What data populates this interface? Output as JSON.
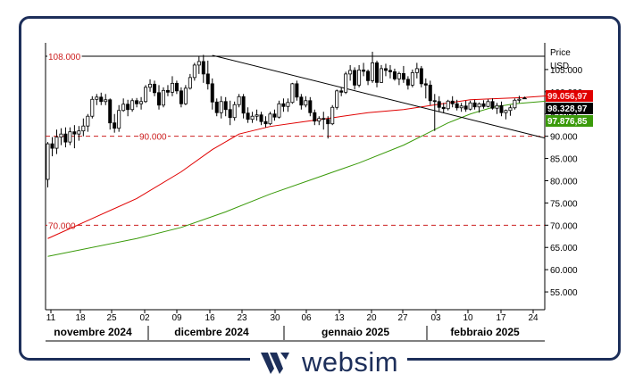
{
  "brand": {
    "name": "websim",
    "logo_icon": "websim-logo-icon",
    "color": "#1d2f5a"
  },
  "chart_data": {
    "type": "candlestick",
    "axis_title_lines": [
      "Price",
      "USD"
    ],
    "ylim": [
      51000,
      111000
    ],
    "y_ticks": [
      55000,
      60000,
      65000,
      70000,
      75000,
      80000,
      85000,
      90000,
      95000,
      100000,
      105000
    ],
    "y_tick_labels": [
      "55.000",
      "60.000",
      "65.000",
      "70.000",
      "75.000",
      "80.000",
      "85.000",
      "90.000",
      "95.000",
      "100.000",
      "105.000"
    ],
    "x_ticks": [
      "11",
      "18",
      "25",
      "02",
      "09",
      "16",
      "23",
      "30",
      "06",
      "13",
      "20",
      "27",
      "03",
      "10",
      "17",
      "24"
    ],
    "months": [
      "novembre 2024",
      "dicembre 2024",
      "gennaio 2025",
      "febbraio 2025"
    ],
    "price_labels": [
      {
        "text": "99.056,97",
        "value": 99056.97,
        "color": "#e00000"
      },
      {
        "text": "98.328,97",
        "value": 98328.97,
        "color": "#000000"
      },
      {
        "text": "97.876,85",
        "value": 97876.85,
        "color": "#3a9a0a"
      }
    ],
    "hlines": [
      {
        "label": "108.000",
        "value": 108000,
        "style": "solid",
        "color": "#000000"
      },
      {
        "label": "90.000",
        "value": 90000,
        "style": "dashed",
        "color": "#cc2020"
      },
      {
        "label": "70.000",
        "value": 70000,
        "style": "dashed",
        "color": "#cc2020"
      }
    ],
    "trendline": {
      "from_day": 37,
      "from_value": 108200,
      "to_day": 117,
      "to_value": 88300,
      "color": "#000000"
    },
    "ma_short": {
      "color": "#e00000",
      "points": [
        [
          0,
          67000
        ],
        [
          10,
          71500
        ],
        [
          20,
          76000
        ],
        [
          30,
          82000
        ],
        [
          37,
          87000
        ],
        [
          43,
          90500
        ],
        [
          50,
          92200
        ],
        [
          57,
          93200
        ],
        [
          65,
          94300
        ],
        [
          72,
          95300
        ],
        [
          80,
          96000
        ],
        [
          88,
          97200
        ],
        [
          95,
          98200
        ],
        [
          102,
          98500
        ],
        [
          107,
          98700
        ],
        [
          112,
          99056
        ]
      ]
    },
    "ma_long": {
      "color": "#3a9a0a",
      "points": [
        [
          0,
          63000
        ],
        [
          20,
          67000
        ],
        [
          30,
          69500
        ],
        [
          40,
          73000
        ],
        [
          50,
          77000
        ],
        [
          60,
          80500
        ],
        [
          70,
          84000
        ],
        [
          80,
          88000
        ],
        [
          85,
          90500
        ],
        [
          90,
          93000
        ],
        [
          95,
          95000
        ],
        [
          100,
          96500
        ],
        [
          105,
          97300
        ],
        [
          112,
          97877
        ]
      ]
    },
    "candles": [
      [
        0,
        80300,
        88700,
        78500,
        88300
      ],
      [
        1,
        88300,
        89800,
        85500,
        87300
      ],
      [
        2,
        87300,
        91500,
        86000,
        89800
      ],
      [
        3,
        89800,
        91800,
        88000,
        90500
      ],
      [
        4,
        90500,
        92000,
        87500,
        88700
      ],
      [
        5,
        88700,
        92000,
        88000,
        91000
      ],
      [
        6,
        91000,
        92500,
        87300,
        90500
      ],
      [
        7,
        90500,
        92300,
        89000,
        91200
      ],
      [
        8,
        91200,
        94000,
        90000,
        92300
      ],
      [
        9,
        92300,
        95000,
        91000,
        94500
      ],
      [
        10,
        94500,
        99000,
        94000,
        98300
      ],
      [
        11,
        98300,
        99500,
        97000,
        98800
      ],
      [
        12,
        98800,
        99800,
        97000,
        97800
      ],
      [
        13,
        97800,
        99500,
        97000,
        98200
      ],
      [
        14,
        98200,
        98500,
        91500,
        93000
      ],
      [
        15,
        93000,
        95000,
        90800,
        91800
      ],
      [
        16,
        91800,
        97000,
        91000,
        95800
      ],
      [
        17,
        95800,
        98500,
        95500,
        97200
      ],
      [
        18,
        97200,
        98200,
        94500,
        96000
      ],
      [
        19,
        96000,
        98500,
        95500,
        98000
      ],
      [
        20,
        98000,
        98600,
        96500,
        97300
      ],
      [
        21,
        97300,
        98800,
        96000,
        97800
      ],
      [
        22,
        97800,
        101500,
        97500,
        101000
      ],
      [
        23,
        101000,
        102800,
        100000,
        101700
      ],
      [
        24,
        101700,
        102500,
        99000,
        99800
      ],
      [
        25,
        99800,
        101500,
        96000,
        97000
      ],
      [
        26,
        97000,
        101000,
        96500,
        100300
      ],
      [
        27,
        100300,
        101500,
        99000,
        99900
      ],
      [
        28,
        99900,
        103500,
        99000,
        101900
      ],
      [
        29,
        101900,
        102500,
        99500,
        100200
      ],
      [
        30,
        100200,
        101000,
        96500,
        97300
      ],
      [
        31,
        97300,
        101500,
        97000,
        100800
      ],
      [
        32,
        100800,
        104000,
        100500,
        103200
      ],
      [
        33,
        103200,
        106500,
        102500,
        106000
      ],
      [
        34,
        106000,
        108000,
        104000,
        106800
      ],
      [
        35,
        106800,
        108300,
        102000,
        104000
      ],
      [
        36,
        104000,
        107000,
        100500,
        101800
      ],
      [
        37,
        101800,
        103000,
        96000,
        97700
      ],
      [
        38,
        97700,
        98500,
        94500,
        95300
      ],
      [
        39,
        95300,
        99000,
        94000,
        97800
      ],
      [
        40,
        97800,
        98800,
        94500,
        96000
      ],
      [
        41,
        96000,
        98000,
        92500,
        94200
      ],
      [
        42,
        94200,
        97800,
        93500,
        97100
      ],
      [
        43,
        97100,
        99500,
        96500,
        98900
      ],
      [
        44,
        98900,
        99500,
        94000,
        95200
      ],
      [
        45,
        95200,
        96500,
        93000,
        93800
      ],
      [
        46,
        93800,
        95500,
        93000,
        94500
      ],
      [
        47,
        94500,
        96000,
        93500,
        94800
      ],
      [
        48,
        94800,
        95500,
        92500,
        93300
      ],
      [
        49,
        93300,
        94500,
        92000,
        92800
      ],
      [
        50,
        92800,
        95500,
        92500,
        95000
      ],
      [
        51,
        95000,
        96000,
        93500,
        94300
      ],
      [
        52,
        94300,
        98000,
        94000,
        97300
      ],
      [
        53,
        97300,
        98500,
        95500,
        96700
      ],
      [
        54,
        96700,
        98500,
        95500,
        97600
      ],
      [
        55,
        97600,
        102000,
        97300,
        101800
      ],
      [
        56,
        101800,
        102500,
        98000,
        98800
      ],
      [
        57,
        98800,
        99500,
        96000,
        97000
      ],
      [
        58,
        97000,
        99000,
        96500,
        98000
      ],
      [
        59,
        98000,
        98800,
        94500,
        95300
      ],
      [
        60,
        95300,
        96000,
        92500,
        93400
      ],
      [
        61,
        93400,
        94500,
        92500,
        94000
      ],
      [
        62,
        94000,
        95500,
        91500,
        93800
      ],
      [
        63,
        93800,
        94500,
        89500,
        92800
      ],
      [
        64,
        92800,
        97000,
        92500,
        96500
      ],
      [
        65,
        96500,
        100500,
        96000,
        100200
      ],
      [
        66,
        100200,
        101000,
        99000,
        99900
      ],
      [
        67,
        99900,
        104500,
        99500,
        104000
      ],
      [
        68,
        104000,
        106000,
        102500,
        104800
      ],
      [
        69,
        104800,
        105500,
        100500,
        101500
      ],
      [
        70,
        101500,
        106000,
        101000,
        104900
      ],
      [
        71,
        104900,
        106500,
        103500,
        104600
      ],
      [
        72,
        104600,
        105000,
        101500,
        102500
      ],
      [
        73,
        102500,
        109000,
        102000,
        106500
      ],
      [
        74,
        106500,
        107000,
        101000,
        102100
      ],
      [
        75,
        102100,
        106000,
        102000,
        105200
      ],
      [
        76,
        105200,
        106300,
        103500,
        104800
      ],
      [
        77,
        104800,
        106000,
        103000,
        104500
      ],
      [
        78,
        104500,
        105200,
        102500,
        102900
      ],
      [
        79,
        102900,
        104500,
        101500,
        104100
      ],
      [
        80,
        104100,
        105800,
        102000,
        102800
      ],
      [
        81,
        102800,
        103500,
        100500,
        101500
      ],
      [
        82,
        101500,
        105000,
        101000,
        104300
      ],
      [
        83,
        104300,
        106500,
        103000,
        105200
      ],
      [
        84,
        105200,
        105800,
        101000,
        101800
      ],
      [
        85,
        101800,
        103000,
        98500,
        101500
      ],
      [
        86,
        101500,
        102500,
        97000,
        98000
      ],
      [
        87,
        98000,
        99500,
        91200,
        97800
      ],
      [
        88,
        97800,
        99000,
        95500,
        96500
      ],
      [
        89,
        96500,
        97500,
        95200,
        96200
      ],
      [
        90,
        96200,
        98200,
        95800,
        97900
      ],
      [
        91,
        97900,
        99000,
        96500,
        97300
      ],
      [
        92,
        97300,
        98200,
        95800,
        96400
      ],
      [
        93,
        96400,
        97500,
        95500,
        96800
      ],
      [
        94,
        96800,
        98000,
        95500,
        96100
      ],
      [
        95,
        96100,
        98000,
        95800,
        97500
      ],
      [
        96,
        97500,
        98200,
        96000,
        96600
      ],
      [
        97,
        96600,
        97600,
        95300,
        97300
      ],
      [
        98,
        97300,
        98100,
        96200,
        96700
      ],
      [
        99,
        96700,
        98300,
        96500,
        97800
      ],
      [
        100,
        97800,
        98500,
        96000,
        96300
      ],
      [
        101,
        96300,
        97500,
        95000,
        96900
      ],
      [
        102,
        96900,
        97800,
        94500,
        95300
      ],
      [
        103,
        95300,
        96000,
        93800,
        95800
      ],
      [
        104,
        95800,
        97000,
        94600,
        96400
      ],
      [
        105,
        96400,
        98500,
        96000,
        98100
      ],
      [
        106,
        98100,
        99100,
        97500,
        98329
      ]
    ]
  }
}
